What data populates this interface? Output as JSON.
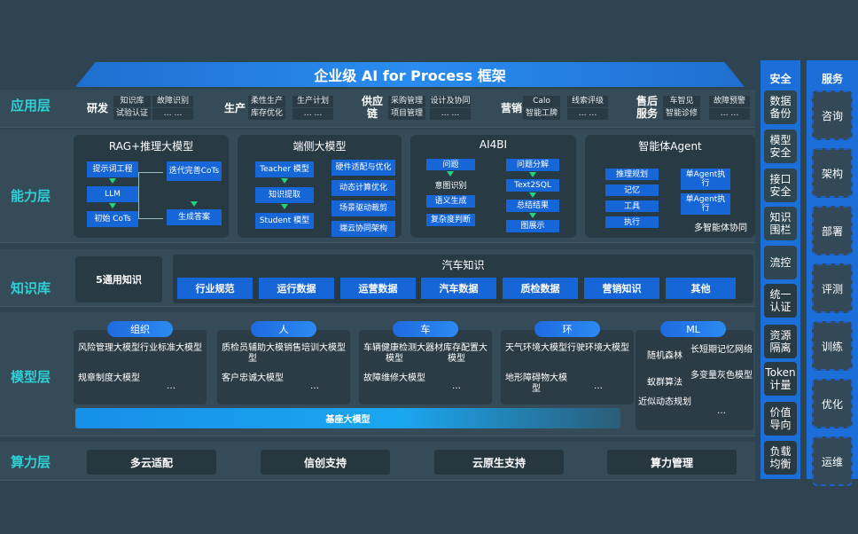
{
  "title": "企业级 AI for Process 框架",
  "layers": {
    "app": "应用层",
    "capability": "能力层",
    "knowledge": "知识库",
    "model": "模型层",
    "compute": "算力层"
  },
  "app_groups": [
    {
      "name": "研发",
      "col1": [
        "知识库",
        "试验认证"
      ],
      "col2": [
        "故障识别",
        "… …"
      ]
    },
    {
      "name": "生产",
      "col1": [
        "柔性生产",
        "库存优化"
      ],
      "col2": [
        "生产计划",
        "… …"
      ]
    },
    {
      "name": "供应链",
      "col1": [
        "采购管理",
        "项目管理"
      ],
      "col2": [
        "设计及协同",
        "… …"
      ]
    },
    {
      "name": "营销",
      "col1": [
        "Calo",
        "智能工牌"
      ],
      "col2": [
        "线索评级",
        "… …"
      ]
    },
    {
      "name": "售后服务",
      "col1": [
        "车智见",
        "智能诊修"
      ],
      "col2": [
        "故障预警",
        "… …"
      ]
    }
  ],
  "capability": {
    "rag": {
      "title": "RAG+推理大模型",
      "items": [
        "提示词工程",
        "LLM",
        "初始 CoTs",
        "迭代完善CoTs",
        "生成答案"
      ]
    },
    "edge": {
      "title": "端侧大模型",
      "left": [
        "Teacher 模型",
        "知识提取",
        "Student 模型"
      ],
      "right": [
        "硬件适配与优化",
        "动态计算优化",
        "场景驱动裁剪",
        "端云协同架构"
      ]
    },
    "ai4bi": {
      "title": "AI4BI",
      "left": [
        "问题",
        "意图识别",
        "语义生成",
        "复杂度判断"
      ],
      "right": [
        "问题分解",
        "Text2SQL",
        "总结结果",
        "图展示"
      ]
    },
    "agent": {
      "title": "智能体Agent",
      "left": [
        "推理规划",
        "记忆",
        "工具",
        "执行"
      ],
      "right": [
        "单Agent执行",
        "单Agent执行"
      ],
      "footer": "多智能体协同"
    }
  },
  "knowledge": {
    "general": "5通用知识",
    "auto_title": "汽车知识",
    "items": [
      "行业规范",
      "运行数据",
      "运营数据",
      "汽车数据",
      "质检数据",
      "营销知识",
      "其他"
    ]
  },
  "model": {
    "groups": [
      {
        "name": "组织",
        "items": [
          "风险管理大模型",
          "行业标准大模型",
          "规章制度大模型",
          "…"
        ]
      },
      {
        "name": "人",
        "items": [
          "质检员辅助大模型",
          "销售培训大模型",
          "客户忠诚大模型",
          "…"
        ]
      },
      {
        "name": "车",
        "items": [
          "车辆健康检测大模型",
          "器材库存配置大模型",
          "故障维修大模型",
          "…"
        ]
      },
      {
        "name": "环",
        "items": [
          "天气环境大模型",
          "行驶环境大模型",
          "地形障碍物大模型",
          "…"
        ]
      }
    ],
    "ml": {
      "name": "ML",
      "items": [
        "随机森林",
        "长短期记忆网络",
        "蚁群算法",
        "多变量灰色模型",
        "近似动态规划",
        "…"
      ]
    },
    "base": "基座大模型"
  },
  "compute": [
    "多云适配",
    "信创支持",
    "云原生支持",
    "算力管理"
  ],
  "security": {
    "title": "安全",
    "items": [
      "数据备份",
      "模型安全",
      "接口安全",
      "知识围栏",
      "流控",
      "统一认证",
      "资源隔离",
      "Token计量",
      "价值导向",
      "负载均衡"
    ]
  },
  "service": {
    "title": "服务",
    "items": [
      "咨询",
      "架构",
      "部署",
      "评测",
      "训练",
      "优化",
      "运维"
    ]
  },
  "colors": {
    "background": "#2e4450",
    "accent": "#1766d8",
    "layer_label": "#2fd0d6",
    "arrow": "#22d37a"
  }
}
